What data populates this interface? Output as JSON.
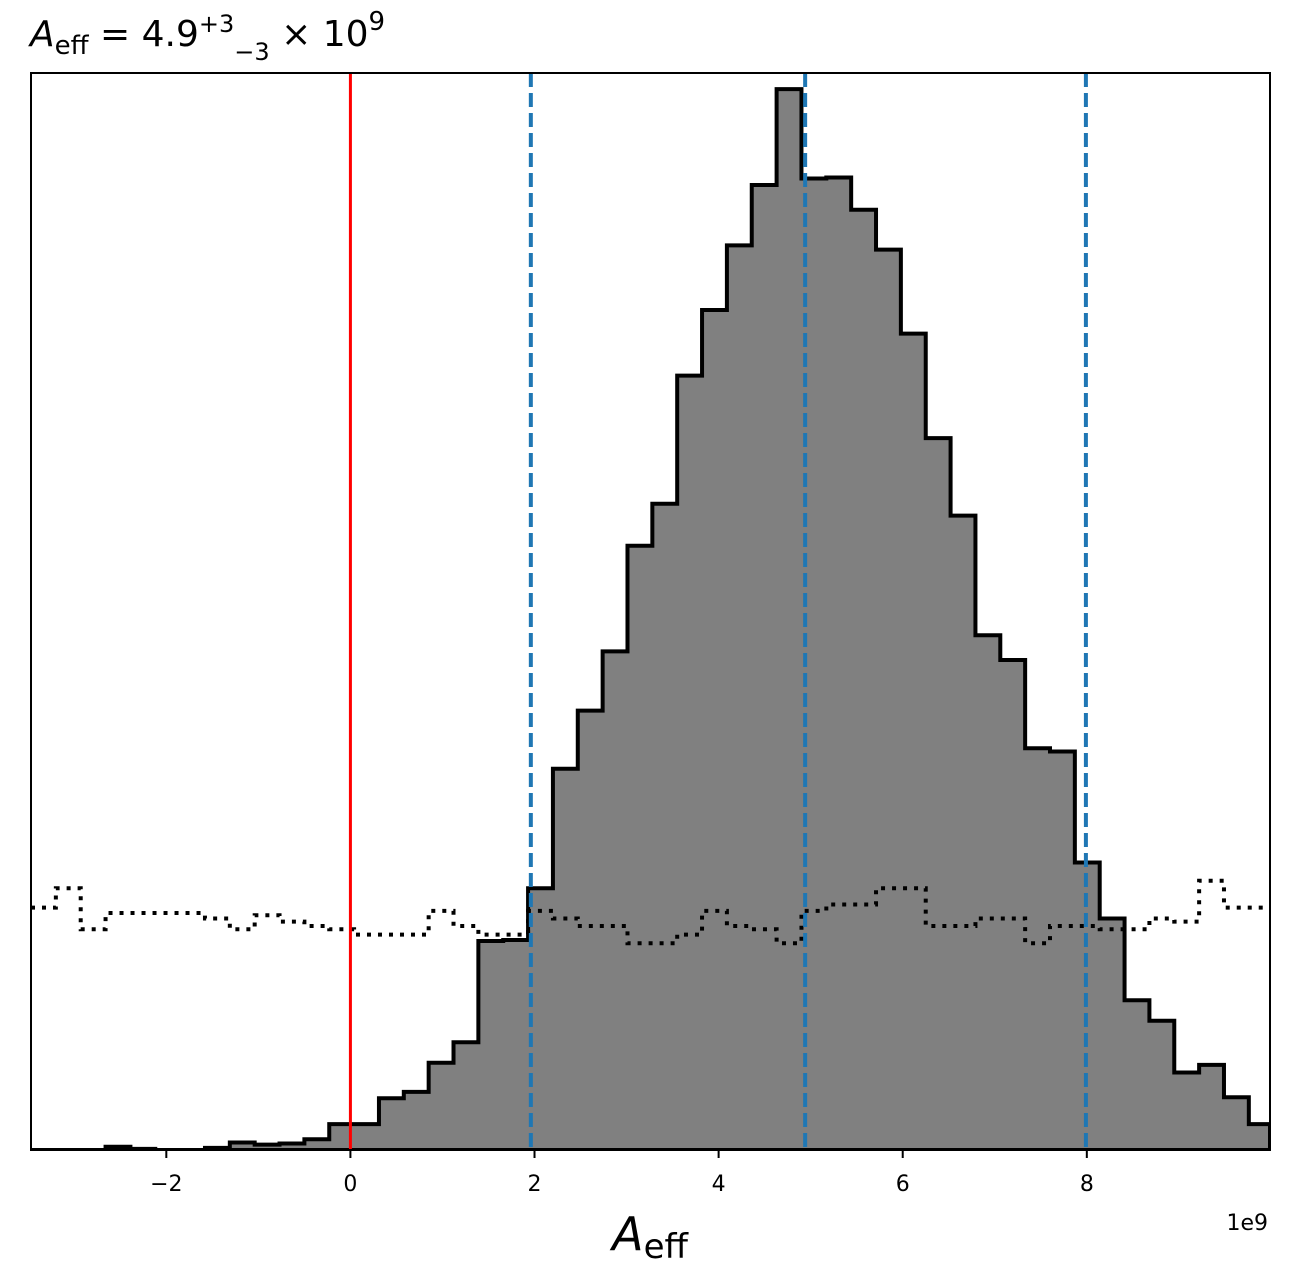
{
  "chart_data": {
    "type": "histogram",
    "title": {
      "symbol": "A",
      "subscript": "eff",
      "equals": " = 4.9",
      "sup": "+3",
      "sub": "−3",
      "times": " × 10",
      "exp": "9"
    },
    "xlabel": {
      "symbol": "A",
      "subscript": "eff"
    },
    "offset_text": "1e9",
    "xlim": [
      -3.47,
      9.99
    ],
    "ylim": [
      0,
      1.0
    ],
    "x_scale": 1000000000,
    "x_ticks": [
      -2,
      0,
      2,
      4,
      6,
      8
    ],
    "x_tick_labels": [
      "−2",
      "0",
      "2",
      "4",
      "6",
      "8"
    ],
    "y_ticks": [],
    "grid": false,
    "bin_edges": [
      -3.47,
      -3.2,
      -2.93,
      -2.66,
      -2.39,
      -2.12,
      -1.85,
      -1.58,
      -1.31,
      -1.04,
      -0.77,
      -0.5,
      -0.23,
      0.04,
      0.31,
      0.58,
      0.85,
      1.12,
      1.39,
      1.66,
      1.93,
      2.2,
      2.47,
      2.74,
      3.01,
      3.28,
      3.55,
      3.82,
      4.09,
      4.36,
      4.63,
      4.9,
      5.17,
      5.44,
      5.71,
      5.98,
      6.25,
      6.52,
      6.79,
      7.06,
      7.33,
      7.6,
      7.87,
      8.14,
      8.41,
      8.68,
      8.95,
      9.22,
      9.49,
      9.76,
      9.99
    ],
    "series": [
      {
        "style": "filled-step",
        "fill": "#808080",
        "edge": "#000000",
        "counts": [
          0.0,
          0.0,
          0.0,
          0.003,
          0.001,
          0.0,
          0.0,
          0.002,
          0.007,
          0.005,
          0.006,
          0.01,
          0.024,
          0.024,
          0.048,
          0.054,
          0.081,
          0.1,
          0.194,
          0.195,
          0.243,
          0.354,
          0.408,
          0.463,
          0.561,
          0.6,
          0.719,
          0.78,
          0.84,
          0.896,
          0.985,
          0.902,
          0.903,
          0.873,
          0.836,
          0.758,
          0.661,
          0.589,
          0.478,
          0.455,
          0.373,
          0.37,
          0.267,
          0.215,
          0.139,
          0.12,
          0.072,
          0.079,
          0.049,
          0.024
        ]
      },
      {
        "style": "dotted-step",
        "edge": "#000000",
        "counts": [
          0.225,
          0.243,
          0.205,
          0.22,
          0.22,
          0.22,
          0.22,
          0.215,
          0.205,
          0.218,
          0.212,
          0.208,
          0.205,
          0.2,
          0.2,
          0.2,
          0.222,
          0.208,
          0.2,
          0.2,
          0.222,
          0.215,
          0.208,
          0.208,
          0.192,
          0.192,
          0.2,
          0.222,
          0.208,
          0.205,
          0.192,
          0.222,
          0.228,
          0.228,
          0.243,
          0.243,
          0.208,
          0.208,
          0.215,
          0.215,
          0.192,
          0.208,
          0.208,
          0.205,
          0.205,
          0.215,
          0.212,
          0.25,
          0.225,
          0.225
        ]
      }
    ],
    "vlines": [
      {
        "x": 0,
        "color": "#ff0000",
        "style": "solid"
      },
      {
        "x": 1.96,
        "color": "#1f77b4",
        "style": "dashed"
      },
      {
        "x": 4.94,
        "color": "#1f77b4",
        "style": "dashed"
      },
      {
        "x": 7.99,
        "color": "#1f77b4",
        "style": "dashed"
      }
    ]
  }
}
